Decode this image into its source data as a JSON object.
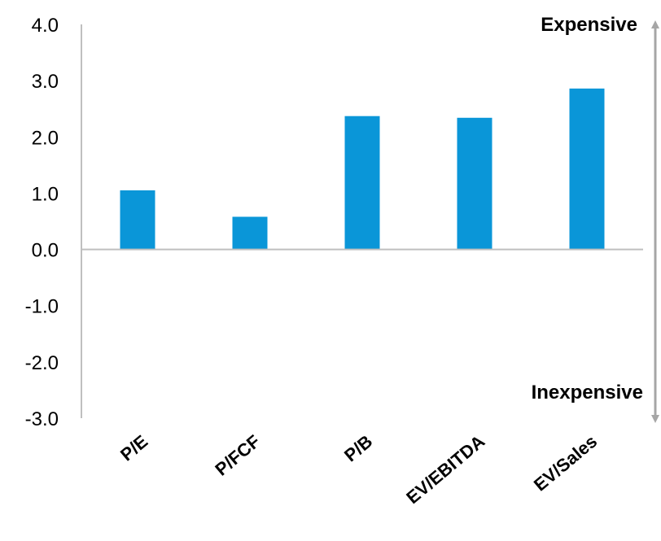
{
  "chart_data": {
    "type": "bar",
    "categories": [
      "P/E",
      "P/FCF",
      "P/B",
      "EV/EBITDA",
      "EV/Sales"
    ],
    "values": [
      1.05,
      0.58,
      2.37,
      2.34,
      2.86
    ],
    "ylim": [
      -3.0,
      4.0
    ],
    "yticks": [
      "4.0",
      "3.0",
      "2.0",
      "1.0",
      "0.0",
      "-1.0",
      "-2.0",
      "-3.0"
    ],
    "bar_color": "#0a96d8",
    "axis_color": "#bfbfbf",
    "arrow_color": "#a6a6a6",
    "grid": false,
    "annotations": {
      "top": "Expensive",
      "bottom": "Inexpensive"
    }
  }
}
